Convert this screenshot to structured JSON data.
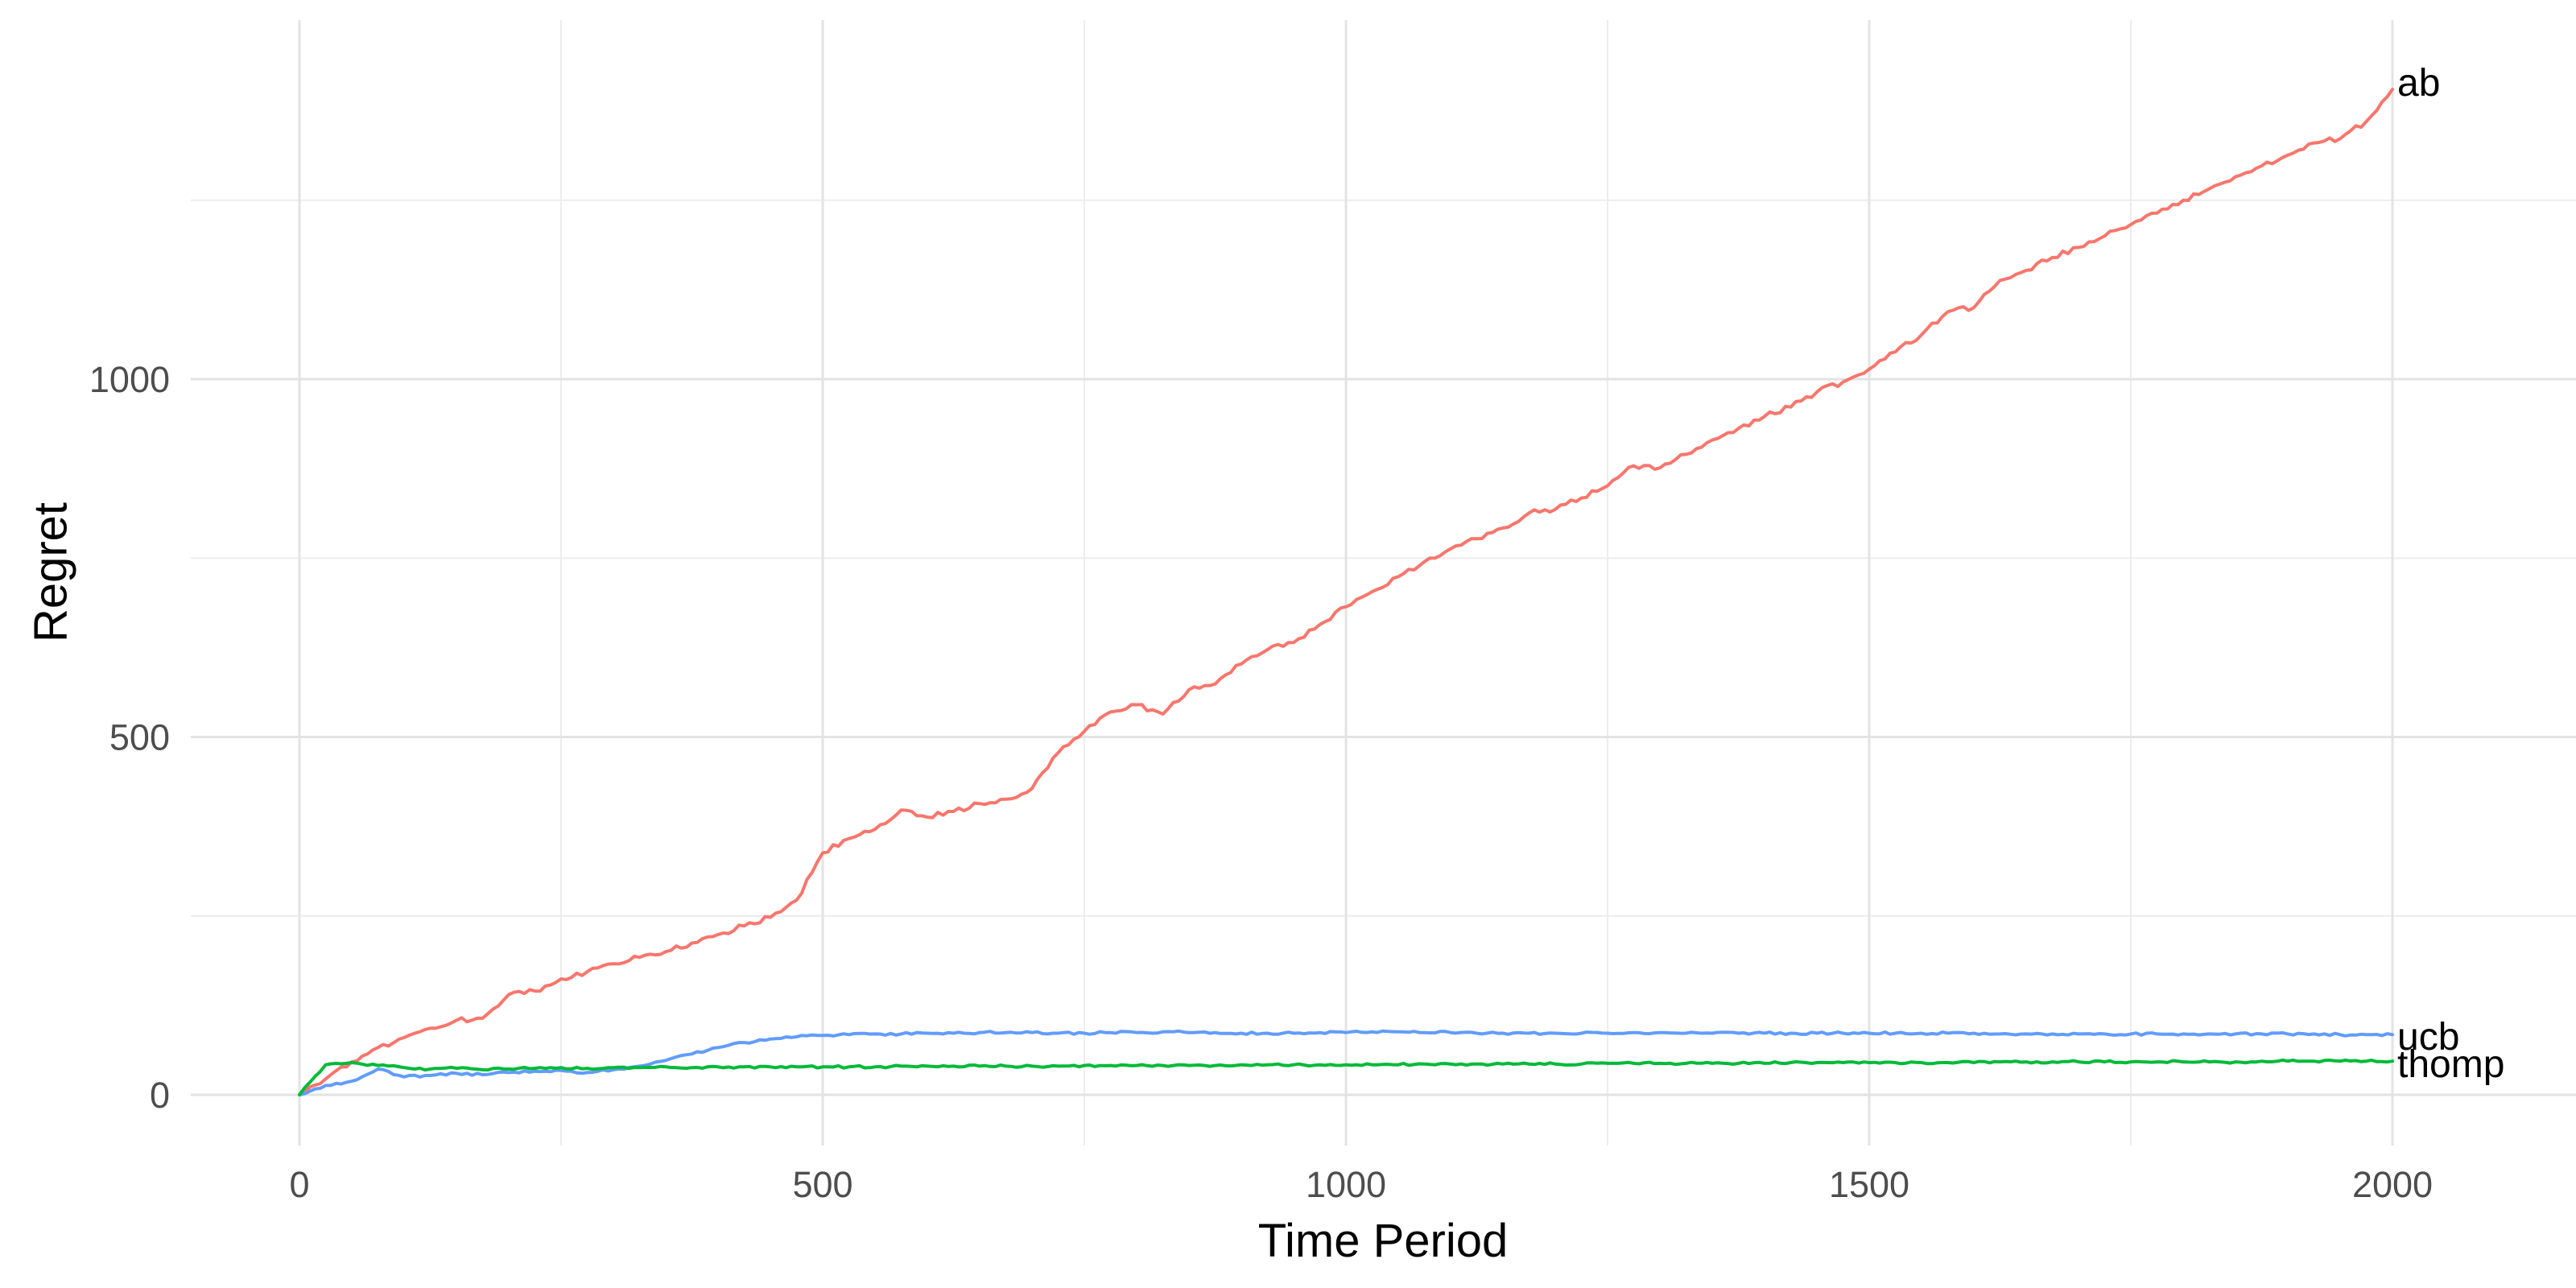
{
  "chart_data": {
    "type": "line",
    "title": "",
    "xlabel": "Time Period",
    "ylabel": "Regret",
    "xlim": [
      0,
      2000
    ],
    "ylim": [
      0,
      1410
    ],
    "x_ticks": [
      0,
      500,
      1000,
      1500,
      2000
    ],
    "y_ticks": [
      0,
      500,
      1000
    ],
    "x_start": 0,
    "x_step": 25,
    "grid": {
      "major_color": "#E3E3E3",
      "minor_color": "#EDEDED",
      "minor_x": [
        250,
        750,
        1250,
        1750
      ],
      "minor_y": [
        250,
        750,
        1250
      ]
    },
    "background_color": "#FFFFFF",
    "tick_label_color": "#4D4D4D",
    "axis_title_color": "#000000",
    "legend_position": "line-end-labels",
    "series": [
      {
        "name": "ab",
        "label": "ab",
        "color": "#F8766D",
        "values": [
          0,
          22,
          46,
          66,
          80,
          93,
          104,
          107,
          140,
          145,
          162,
          172,
          183,
          192,
          200,
          212,
          224,
          236,
          248,
          272,
          338,
          358,
          371,
          398,
          388,
          396,
          407,
          413,
          428,
          478,
          508,
          535,
          545,
          532,
          566,
          574,
          602,
          622,
          632,
          657,
          682,
          703,
          724,
          745,
          763,
          777,
          792,
          813,
          818,
          834,
          851,
          879,
          876,
          895,
          915,
          931,
          948,
          961,
          982,
          996,
          1014,
          1038,
          1062,
          1094,
          1100,
          1138,
          1152,
          1170,
          1184,
          1200,
          1216,
          1232,
          1250,
          1266,
          1283,
          1298,
          1313,
          1330,
          1336,
          1360,
          1405
        ]
      },
      {
        "name": "ucb",
        "label": "ucb",
        "color": "#619CFF",
        "values": [
          0,
          13,
          19,
          36,
          25,
          27,
          30,
          28,
          31,
          33,
          34,
          31,
          35,
          40,
          48,
          57,
          66,
          73,
          78,
          81,
          83,
          84,
          85,
          85,
          86,
          86,
          87,
          87,
          87,
          86,
          86,
          87,
          87,
          88,
          87,
          87,
          86,
          86,
          86,
          87,
          87,
          88,
          88,
          87,
          87,
          86,
          86,
          86,
          86,
          86,
          86,
          87,
          87,
          86,
          86,
          86,
          86,
          86,
          86,
          86,
          86,
          86,
          86,
          86,
          86,
          85,
          85,
          85,
          85,
          85,
          85,
          85,
          85,
          85,
          85,
          85,
          85,
          85,
          84,
          84,
          84
        ]
      },
      {
        "name": "thomp",
        "label": "thomp",
        "color": "#00BA38",
        "values": [
          0,
          42,
          45,
          41,
          38,
          36,
          37,
          35,
          36,
          37,
          38,
          37,
          38,
          38,
          39,
          38,
          39,
          39,
          39,
          39,
          39,
          39,
          39,
          40,
          40,
          40,
          40,
          40,
          40,
          40,
          41,
          41,
          41,
          41,
          41,
          41,
          42,
          42,
          42,
          42,
          42,
          42,
          42,
          43,
          43,
          43,
          43,
          43,
          43,
          43,
          44,
          44,
          44,
          44,
          44,
          44,
          44,
          45,
          45,
          45,
          45,
          45,
          45,
          45,
          45,
          46,
          46,
          46,
          46,
          46,
          46,
          46,
          46,
          46,
          46,
          47,
          47,
          47,
          47,
          47,
          47
        ]
      }
    ]
  }
}
